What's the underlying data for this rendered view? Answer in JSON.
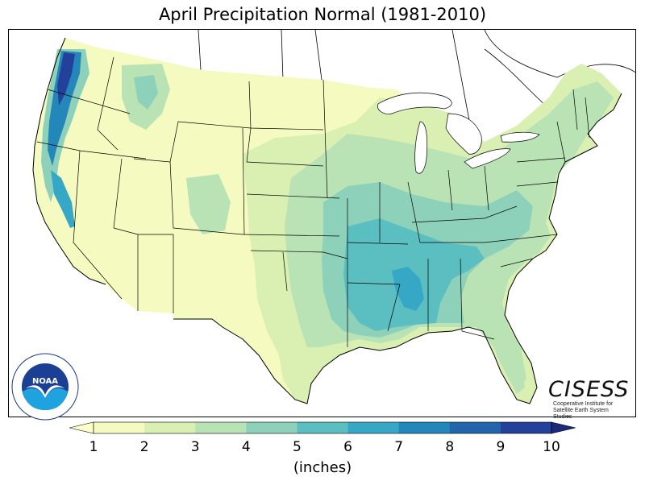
{
  "title": "April Precipitation Normal (1981-2010)",
  "logos": {
    "noaa_text": "NOAA",
    "noaa_ring_text": "NATIONAL OCEANIC AND ATMOSPHERIC ADMINISTRATION · U.S. DEPARTMENT OF COMMERCE",
    "cisess_name": "CISESS",
    "cisess_line1": "Cooperative Institute for",
    "cisess_line2": "Satellite Earth System Studies"
  },
  "colorbar": {
    "unit_label": "(inches)",
    "ticks": [
      "1",
      "2",
      "3",
      "4",
      "5",
      "6",
      "7",
      "8",
      "9",
      "10"
    ],
    "bins": [
      {
        "from": 1,
        "to": 2,
        "color": "#f5fbc0"
      },
      {
        "from": 2,
        "to": 3,
        "color": "#daf0b2"
      },
      {
        "from": 3,
        "to": 4,
        "color": "#b9e3b5"
      },
      {
        "from": 4,
        "to": 5,
        "color": "#8dd1bb"
      },
      {
        "from": 5,
        "to": 6,
        "color": "#5bbfc2"
      },
      {
        "from": 6,
        "to": 7,
        "color": "#36a7c4"
      },
      {
        "from": 7,
        "to": 8,
        "color": "#2487b9"
      },
      {
        "from": 8,
        "to": 9,
        "color": "#2265ab"
      },
      {
        "from": 9,
        "to": 10,
        "color": "#23419a"
      }
    ],
    "under_color": "#ffffcc",
    "over_color": "#1b2a7a"
  },
  "map": {
    "ocean_color": "#ffffff",
    "lake_color": "#ffffff",
    "border_color": "#000000"
  }
}
